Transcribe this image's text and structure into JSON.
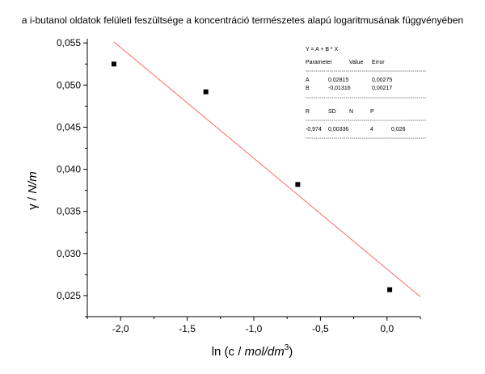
{
  "chart_data": {
    "type": "scatter",
    "title": "a i-butanol oldatok felületi feszültsége a koncentráció természetes alapú logaritmusának függvényében",
    "xlabel": {
      "prefix": "ln (c / ",
      "italic": "mol/dm",
      "sup": "3",
      "suffix": ")"
    },
    "ylabel": {
      "greek": "γ",
      "sep": " / ",
      "italic": "N/m"
    },
    "xlim": [
      -2.25,
      0.25
    ],
    "ylim": [
      0.0225,
      0.0555
    ],
    "x_ticks": [
      -2.0,
      -1.5,
      -1.0,
      -0.5,
      0.0
    ],
    "x_tick_labels": [
      "-2,0",
      "-1,5",
      "-1,0",
      "-0,5",
      "0,0"
    ],
    "y_ticks": [
      0.025,
      0.03,
      0.035,
      0.04,
      0.045,
      0.05,
      0.055
    ],
    "y_tick_labels": [
      "0,025",
      "0,030",
      "0,035",
      "0,040",
      "0,045",
      "0,050",
      "0,055"
    ],
    "series": [
      {
        "marker": "square",
        "color": "#000000",
        "x": [
          -2.05,
          -1.36,
          -0.67,
          0.02
        ],
        "y": [
          0.0525,
          0.0492,
          0.0382,
          0.0257
        ]
      }
    ],
    "fit_line": {
      "color": "#ff6666",
      "intercept": 0.02815,
      "slope": -0.01316,
      "x_range": [
        -2.05,
        0.25
      ]
    },
    "fit_box": {
      "equation": "Y = A + B * X",
      "param_headers": [
        "Parameter",
        "Value",
        "Error"
      ],
      "params": [
        [
          "A",
          "0,02815",
          "0,00275"
        ],
        [
          "B",
          "-0,01316",
          "0,00217"
        ]
      ],
      "stat_headers": [
        "R",
        "SD",
        "N",
        "P"
      ],
      "stats": [
        "-0,974",
        "0,00336",
        "4",
        "0,026"
      ]
    },
    "grid": false
  }
}
